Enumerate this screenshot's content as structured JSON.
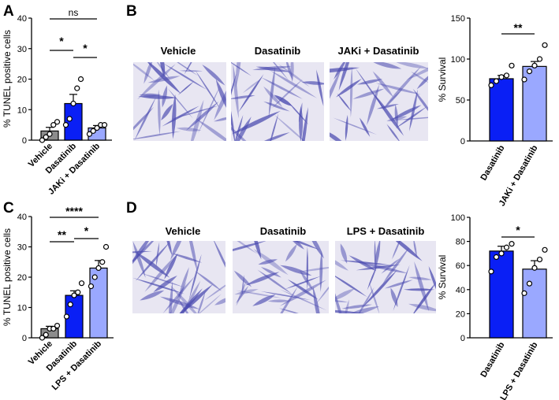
{
  "panels": {
    "A": "A",
    "B": "B",
    "C": "C",
    "D": "D"
  },
  "image_titles": {
    "B": [
      "Vehicle",
      "Dasatinib",
      "JAKi + Dasatinib"
    ],
    "D": [
      "Vehicle",
      "Dasatinib",
      "LPS + Dasatinib"
    ]
  },
  "colors": {
    "vehicle": "#8c8c8c",
    "dasatinib": "#0a1ff5",
    "combo": "#9aa8ff",
    "stain_bg": "#e8e6f2",
    "stain_cell": "#4b4bb0"
  },
  "chart_data": [
    {
      "id": "A",
      "type": "bar",
      "ylabel": "% TUNEL positive cells",
      "ylim": [
        0,
        40
      ],
      "yticks": [
        "0",
        "10",
        "20",
        "30",
        "40"
      ],
      "categories": [
        "Vehicle",
        "Dasatinib",
        "JAKi + Dasatinib"
      ],
      "values": [
        3,
        12,
        4
      ],
      "errors": [
        1.2,
        3,
        0.8
      ],
      "points": [
        [
          0,
          1,
          2,
          5,
          6
        ],
        [
          5,
          7,
          12,
          17,
          20
        ],
        [
          2,
          3,
          4,
          5,
          5
        ]
      ],
      "significance": [
        {
          "from": 0,
          "to": 2,
          "label": "ns"
        },
        {
          "from": 0,
          "to": 1,
          "label": "*"
        },
        {
          "from": 1,
          "to": 2,
          "label": "*"
        }
      ]
    },
    {
      "id": "B",
      "type": "bar",
      "ylabel": "% Survival",
      "ylim": [
        0,
        150
      ],
      "yticks": [
        "0",
        "50",
        "100",
        "150"
      ],
      "categories": [
        "Dasatinib",
        "JAKi + Dasatinib"
      ],
      "values": [
        76,
        91
      ],
      "errors": [
        4,
        6
      ],
      "points": [
        [
          68,
          73,
          78,
          80,
          92
        ],
        [
          75,
          85,
          92,
          100,
          117
        ]
      ],
      "significance": [
        {
          "from": 0,
          "to": 1,
          "label": "**"
        }
      ]
    },
    {
      "id": "C",
      "type": "bar",
      "ylabel": "% TUNEL positive cells",
      "ylim": [
        0,
        40
      ],
      "yticks": [
        "0",
        "10",
        "20",
        "30",
        "40"
      ],
      "categories": [
        "Vehicle",
        "Dasatinib",
        "LPS + Dasatinib"
      ],
      "values": [
        3,
        14,
        23
      ],
      "errors": [
        0.8,
        1.5,
        2.5
      ],
      "points": [
        [
          0,
          1,
          3,
          3,
          4
        ],
        [
          7,
          11,
          14,
          15,
          18
        ],
        [
          17,
          20,
          23,
          25,
          30
        ]
      ],
      "significance": [
        {
          "from": 0,
          "to": 2,
          "label": "****"
        },
        {
          "from": 0,
          "to": 1,
          "label": "**"
        },
        {
          "from": 1,
          "to": 2,
          "label": "*"
        }
      ]
    },
    {
      "id": "D",
      "type": "bar",
      "ylabel": "% Survival",
      "ylim": [
        0,
        100
      ],
      "yticks": [
        "0",
        "20",
        "40",
        "60",
        "80",
        "100"
      ],
      "categories": [
        "Dasatinib",
        "LPS + Dasatinib"
      ],
      "values": [
        72,
        57
      ],
      "errors": [
        4,
        7
      ],
      "points": [
        [
          55,
          67,
          70,
          75,
          78
        ],
        [
          37,
          45,
          58,
          65,
          73
        ]
      ],
      "significance": [
        {
          "from": 0,
          "to": 1,
          "label": "*"
        }
      ]
    }
  ]
}
